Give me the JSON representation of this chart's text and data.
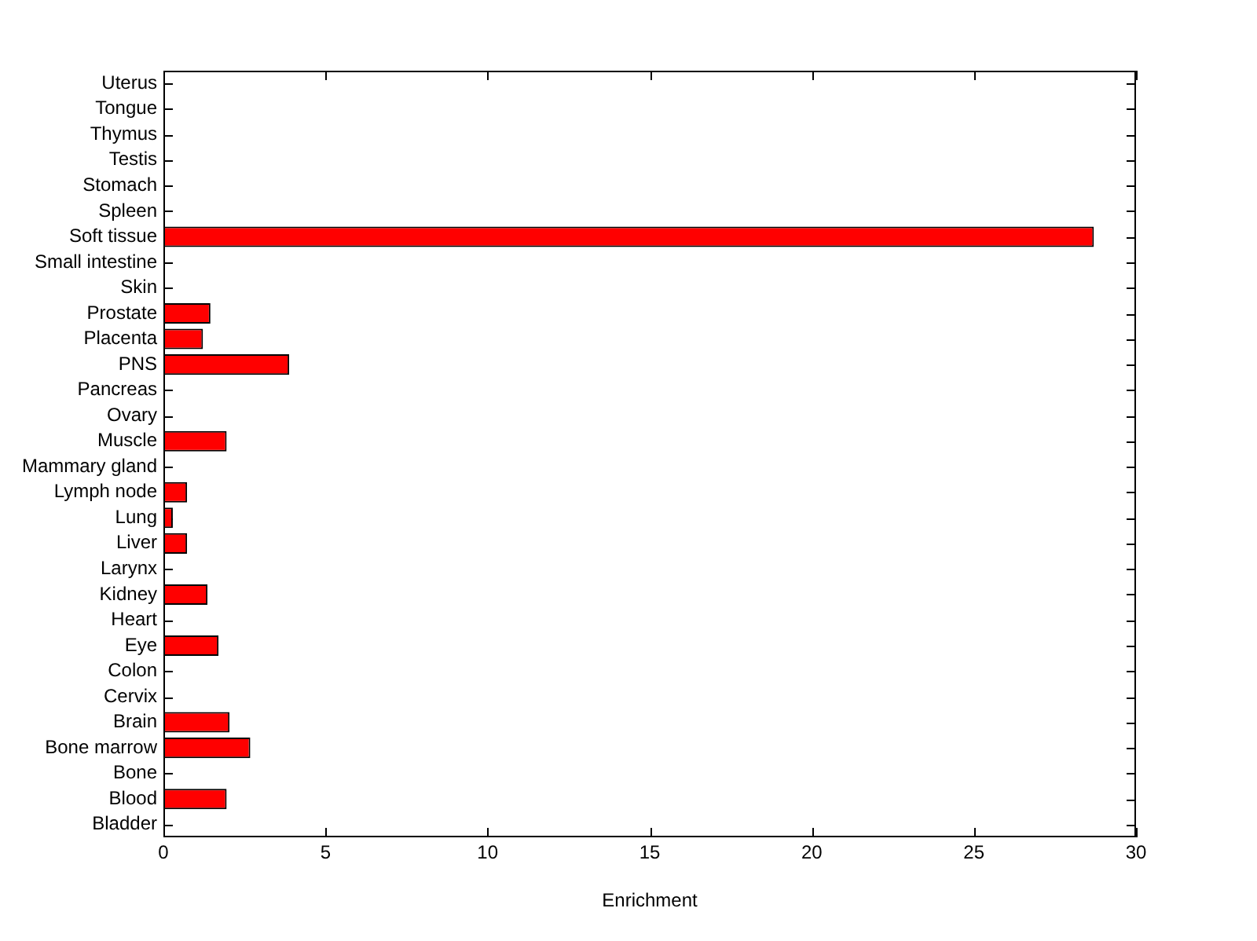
{
  "chart_data": {
    "type": "bar",
    "orientation": "horizontal",
    "xlabel": "Enrichment",
    "categories": [
      "Uterus",
      "Tongue",
      "Thymus",
      "Testis",
      "Stomach",
      "Spleen",
      "Soft tissue",
      "Small intestine",
      "Skin",
      "Prostate",
      "Placenta",
      "PNS",
      "Pancreas",
      "Ovary",
      "Muscle",
      "Mammary gland",
      "Lymph node",
      "Lung",
      "Liver",
      "Larynx",
      "Kidney",
      "Heart",
      "Eye",
      "Colon",
      "Cervix",
      "Brain",
      "Bone marrow",
      "Bone",
      "Blood",
      "Bladder"
    ],
    "values": [
      0,
      0,
      0,
      0,
      0,
      0,
      28.7,
      0,
      0,
      1.45,
      1.22,
      3.88,
      0,
      0,
      1.95,
      0,
      0.73,
      0.29,
      0.73,
      0,
      1.36,
      0,
      1.7,
      0,
      0,
      2.04,
      2.68,
      0,
      1.95,
      0
    ],
    "color": "#ff0000",
    "xlim": [
      0,
      30
    ],
    "xticks": [
      0,
      5,
      10,
      15,
      20,
      25,
      30
    ],
    "grid": false,
    "legend": false
  }
}
